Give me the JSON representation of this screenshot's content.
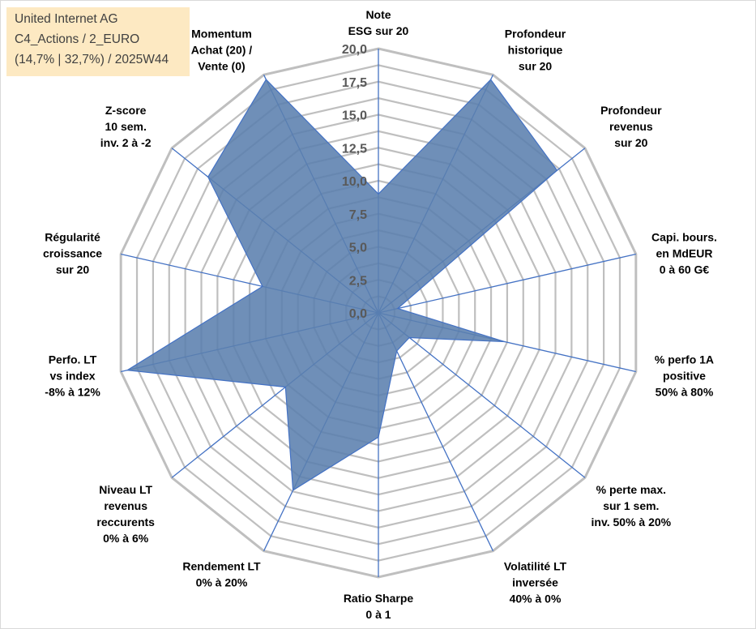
{
  "info": {
    "company": "United Internet AG",
    "category": "C4_Actions / 2_EURO",
    "summary": "(14,7% | 32,7%) / 2025W44"
  },
  "chart_data": {
    "type": "radar",
    "title": "",
    "rmin": 0,
    "rmax": 20,
    "tick_step": 2.5,
    "tick_labels": [
      "0,0",
      "2,5",
      "5,0",
      "7,5",
      "10,0",
      "12,5",
      "15,0",
      "17,5",
      "20,0"
    ],
    "axes": [
      {
        "label": [
          "Note",
          "ESG sur 20"
        ],
        "value": 9.0
      },
      {
        "label": [
          "Profondeur",
          "historique",
          "sur 20"
        ],
        "value": 19.6
      },
      {
        "label": [
          "Profondeur",
          "revenus",
          "sur 20"
        ],
        "value": 17.3
      },
      {
        "label": [
          "Capi. bours.",
          "en MdEUR",
          "0 à 60 G€"
        ],
        "value": 1.5
      },
      {
        "label": [
          "% perfo 1A",
          "positive",
          "50% à 80%"
        ],
        "value": 9.8
      },
      {
        "label": [
          "% perte max.",
          "sur 1 sem.",
          "inv. 50% à 20%"
        ],
        "value": 3.0
      },
      {
        "label": [
          "Volatilité LT",
          "inversée",
          "40% à 0%"
        ],
        "value": 3.2
      },
      {
        "label": [
          "Ratio Sharpe",
          "0 à 1"
        ],
        "value": 9.4
      },
      {
        "label": [
          "Rendement LT",
          "0% à 20%"
        ],
        "value": 14.9
      },
      {
        "label": [
          "Niveau LT",
          "revenus",
          "reccurents",
          "0% à 6%"
        ],
        "value": 9.0
      },
      {
        "label": [
          "Perfo. LT",
          "vs index",
          "-8% à 12%"
        ],
        "value": 19.5
      },
      {
        "label": [
          "Régularité",
          "croissance",
          "sur 20"
        ],
        "value": 9.0
      },
      {
        "label": [
          "Z-score",
          "10 sem.",
          "inv. 2 à -2"
        ],
        "value": 16.5
      },
      {
        "label": [
          "Momentum",
          "Achat (20) /",
          "Vente (0)"
        ],
        "value": 19.6
      }
    ],
    "series": [
      {
        "name": "United Internet AG",
        "color": "#5b7fae"
      }
    ],
    "grid_color": "#bfbfbf",
    "spoke_color": "#4472c4"
  }
}
